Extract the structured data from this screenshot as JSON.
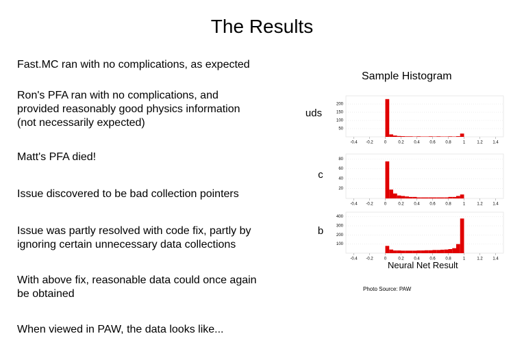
{
  "slide": {
    "title": "The Results",
    "bullets": [
      "Fast.MC ran with no complications, as expected",
      "Ron's PFA ran with no complications, and provided reasonably good physics information (not necessarily expected)",
      "Matt's PFA died!",
      "Issue discovered to be bad collection pointers",
      "Issue was partly resolved with code fix, partly by ignoring certain unnecessary data collections",
      "With above fix, reasonable data could once again be obtained",
      "When viewed in PAW, the data looks like..."
    ],
    "histogram_title": "Sample Histogram",
    "xlabel": "Neural Net Result",
    "credit": "Photo Source: PAW"
  },
  "chart_data": [
    {
      "type": "histogram",
      "label": "uds",
      "color": "#e00000",
      "bins": [
        0,
        0.05,
        0.1,
        0.15,
        0.2,
        0.25,
        0.3,
        0.35,
        0.4,
        0.45,
        0.5,
        0.55,
        0.6,
        0.65,
        0.7,
        0.75,
        0.8,
        0.85,
        0.9,
        0.95,
        1.0
      ],
      "values": [
        230,
        15,
        8,
        5,
        4,
        3,
        3,
        2,
        3,
        2,
        2,
        3,
        2,
        3,
        2,
        2,
        3,
        2,
        4,
        20
      ],
      "xlim": [
        -0.5,
        1.5
      ],
      "xticks": [
        -0.4,
        -0.2,
        0,
        0.2,
        0.4,
        0.6,
        0.8,
        1,
        1.2,
        1.4
      ],
      "ylim": [
        0,
        250
      ],
      "yticks": [
        50,
        100,
        150,
        200
      ]
    },
    {
      "type": "histogram",
      "label": "c",
      "color": "#e00000",
      "bins": [
        0,
        0.05,
        0.1,
        0.15,
        0.2,
        0.25,
        0.3,
        0.35,
        0.4,
        0.45,
        0.5,
        0.55,
        0.6,
        0.65,
        0.7,
        0.75,
        0.8,
        0.85,
        0.9,
        0.95,
        1.0
      ],
      "values": [
        75,
        18,
        10,
        6,
        5,
        4,
        3,
        3,
        2,
        2,
        2,
        2,
        2,
        2,
        2,
        2,
        3,
        3,
        5,
        8
      ],
      "xlim": [
        -0.5,
        1.5
      ],
      "xticks": [
        -0.4,
        -0.2,
        0,
        0.2,
        0.4,
        0.6,
        0.8,
        1,
        1.2,
        1.4
      ],
      "ylim": [
        0,
        90
      ],
      "yticks": [
        20,
        40,
        60,
        80
      ]
    },
    {
      "type": "histogram",
      "label": "b",
      "color": "#e00000",
      "bins": [
        0,
        0.05,
        0.1,
        0.15,
        0.2,
        0.25,
        0.3,
        0.35,
        0.4,
        0.45,
        0.5,
        0.55,
        0.6,
        0.65,
        0.7,
        0.75,
        0.8,
        0.85,
        0.9,
        0.95,
        1.0
      ],
      "values": [
        80,
        40,
        30,
        30,
        28,
        28,
        28,
        28,
        30,
        30,
        32,
        32,
        35,
        35,
        38,
        40,
        45,
        55,
        100,
        380
      ],
      "xlim": [
        -0.5,
        1.5
      ],
      "xticks": [
        -0.4,
        -0.2,
        0,
        0.2,
        0.4,
        0.6,
        0.8,
        1,
        1.2,
        1.4
      ],
      "ylim": [
        0,
        450
      ],
      "yticks": [
        100,
        200,
        300,
        400
      ]
    }
  ]
}
